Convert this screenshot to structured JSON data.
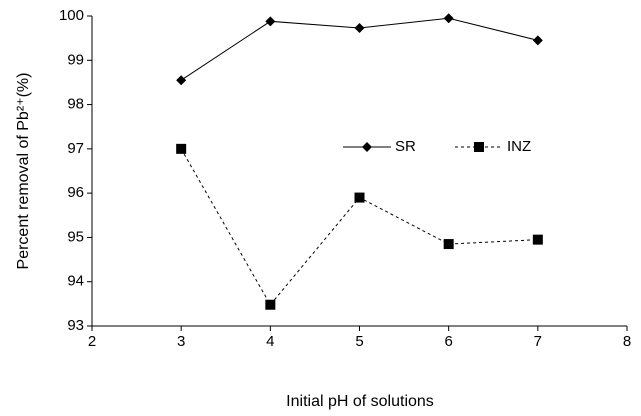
{
  "chart_data": {
    "type": "line",
    "x_label": "Initial pH of solutions",
    "y_label": "Percent removal of Pb²⁺(%)",
    "xlim": [
      2,
      8
    ],
    "xticks": [
      2,
      3,
      4,
      5,
      6,
      7,
      8
    ],
    "ylim": [
      93,
      100
    ],
    "yticks": [
      93,
      94,
      95,
      96,
      97,
      98,
      99,
      100
    ],
    "grid": false,
    "series": [
      {
        "name": "SR",
        "color": "#000000",
        "marker": "diamond",
        "dash": "solid",
        "x": [
          3,
          4,
          5,
          6,
          7
        ],
        "values": [
          98.55,
          99.88,
          99.73,
          99.95,
          99.45
        ]
      },
      {
        "name": "INZ",
        "color": "#000000",
        "marker": "square",
        "dash": "dashed",
        "x": [
          3,
          4,
          5,
          6,
          7
        ],
        "values": [
          97.0,
          93.48,
          95.9,
          94.85,
          94.95
        ]
      }
    ]
  }
}
